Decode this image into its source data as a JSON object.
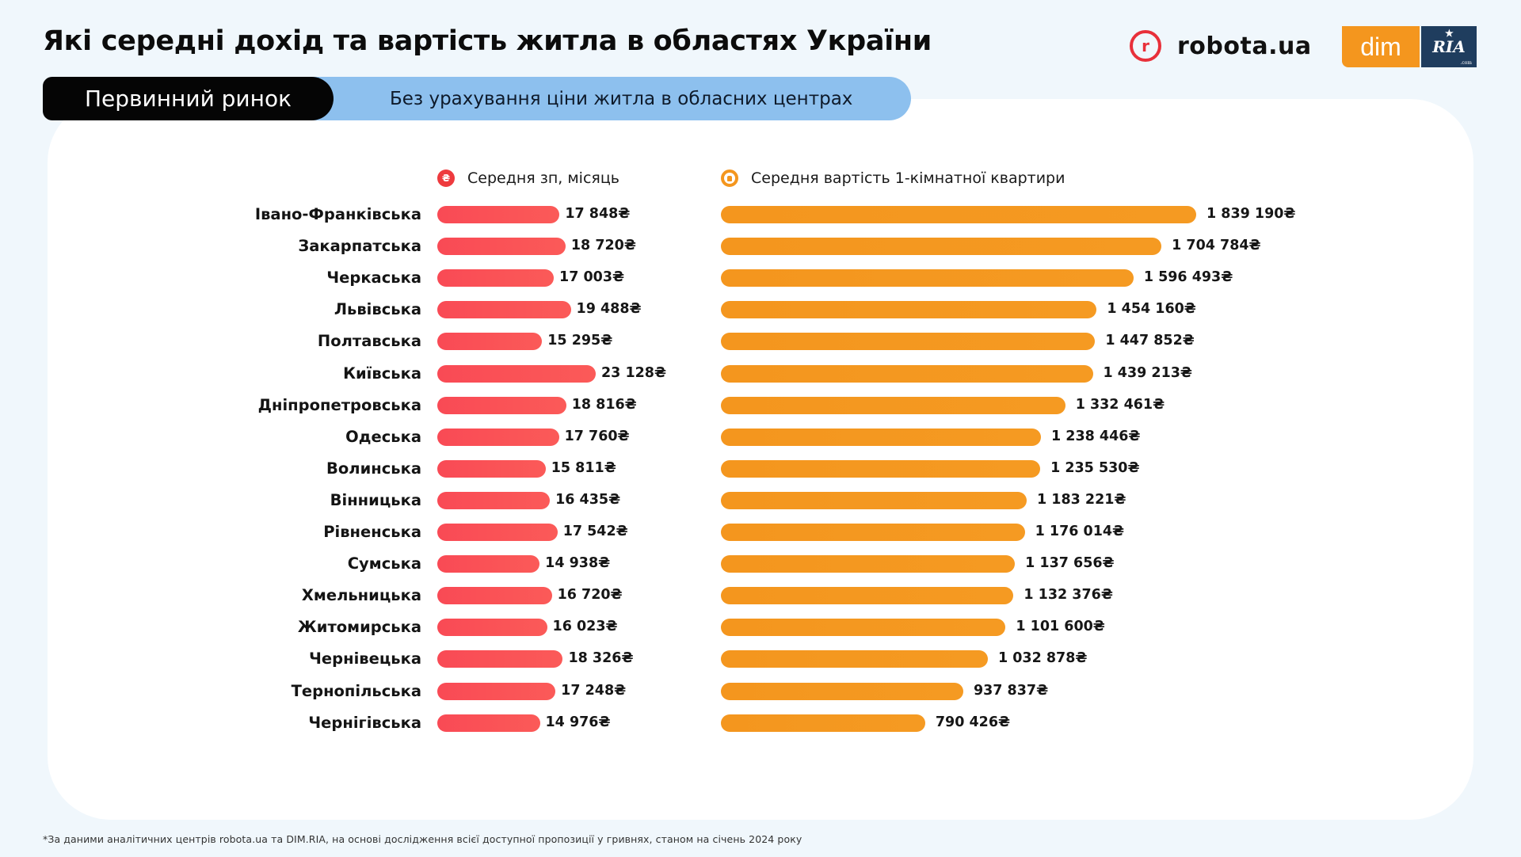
{
  "header": {
    "title": "Які середні дохід та вартість житла в областях України",
    "logos": {
      "robota_mark": "r",
      "robota_text": "robota.ua",
      "dim_text": "dim",
      "ria_text": "RIA",
      "ria_star": "★",
      "ria_suffix": ".com"
    }
  },
  "tabs": {
    "primary_label": "Первинний ринок",
    "secondary_label": "Без урахування ціни житла в обласних центрах"
  },
  "colors": {
    "salary": "#f94a55",
    "flat": "#f4961e",
    "tab_primary": "#050505",
    "tab_secondary": "#8dc0ee"
  },
  "chart_data": {
    "type": "bar",
    "orientation": "horizontal",
    "title": "Які середні дохід та вартість житла в областях України",
    "subtitle": "Первинний ринок — Без урахування ціни житла в обласних центрах",
    "currency_symbol": "₴",
    "legend": [
      {
        "name": "Середня зп, місяць",
        "icon": "hryvnia-coin-icon"
      },
      {
        "name": "Середня вартість 1-кімнатної квартири",
        "icon": "house-icon"
      }
    ],
    "categories": [
      "Івано-Франківська",
      "Закарпатська",
      "Черкаська",
      "Львівська",
      "Полтавська",
      "Київська",
      "Дніпропетровська",
      "Одеська",
      "Волинська",
      "Вінницька",
      "Рівненська",
      "Сумська",
      "Хмельницька",
      "Житомирська",
      "Чернівецька",
      "Тернопільська",
      "Чернігівська"
    ],
    "series": [
      {
        "name": "Середня зп, місяць",
        "values": [
          17848,
          18720,
          17003,
          19488,
          15295,
          23128,
          18816,
          17760,
          15811,
          16435,
          17542,
          14938,
          16720,
          16023,
          18326,
          17248,
          14976
        ],
        "labels": [
          "17 848₴",
          "18 720₴",
          "17 003₴",
          "19 488₴",
          "15 295₴",
          "23 128₴",
          "18 816₴",
          "17 760₴",
          "15 811₴",
          "16 435₴",
          "17 542₴",
          "14 938₴",
          "16 720₴",
          "16 023₴",
          "18 326₴",
          "17 248₴",
          "14 976₴"
        ]
      },
      {
        "name": "Середня вартість 1-кімнатної квартири",
        "values": [
          1839190,
          1704784,
          1596493,
          1454160,
          1447852,
          1439213,
          1332461,
          1238446,
          1235530,
          1183221,
          1176014,
          1137656,
          1132376,
          1101600,
          1032878,
          937837,
          790426
        ],
        "labels": [
          "1 839 190₴",
          "1 704 784₴",
          "1 596 493₴",
          "1 454 160₴",
          "1 447 852₴",
          "1 439 213₴",
          "1 332 461₴",
          "1 238 446₴",
          "1 235 530₴",
          "1 183 221₴",
          "1 176 014₴",
          "1 137 656₴",
          "1 132 376₴",
          "1 101 600₴",
          "1 032 878₴",
          "937 837₴",
          "790 426₴"
        ]
      }
    ],
    "xlabel": "",
    "ylabel": "",
    "grid": false,
    "legend_position": "top"
  },
  "footnote": "*За даними аналітичних центрів robota.ua та DIM.RIA, на основі дослідження всієї доступної пропозиції у гривнях, станом на січень 2024 року"
}
